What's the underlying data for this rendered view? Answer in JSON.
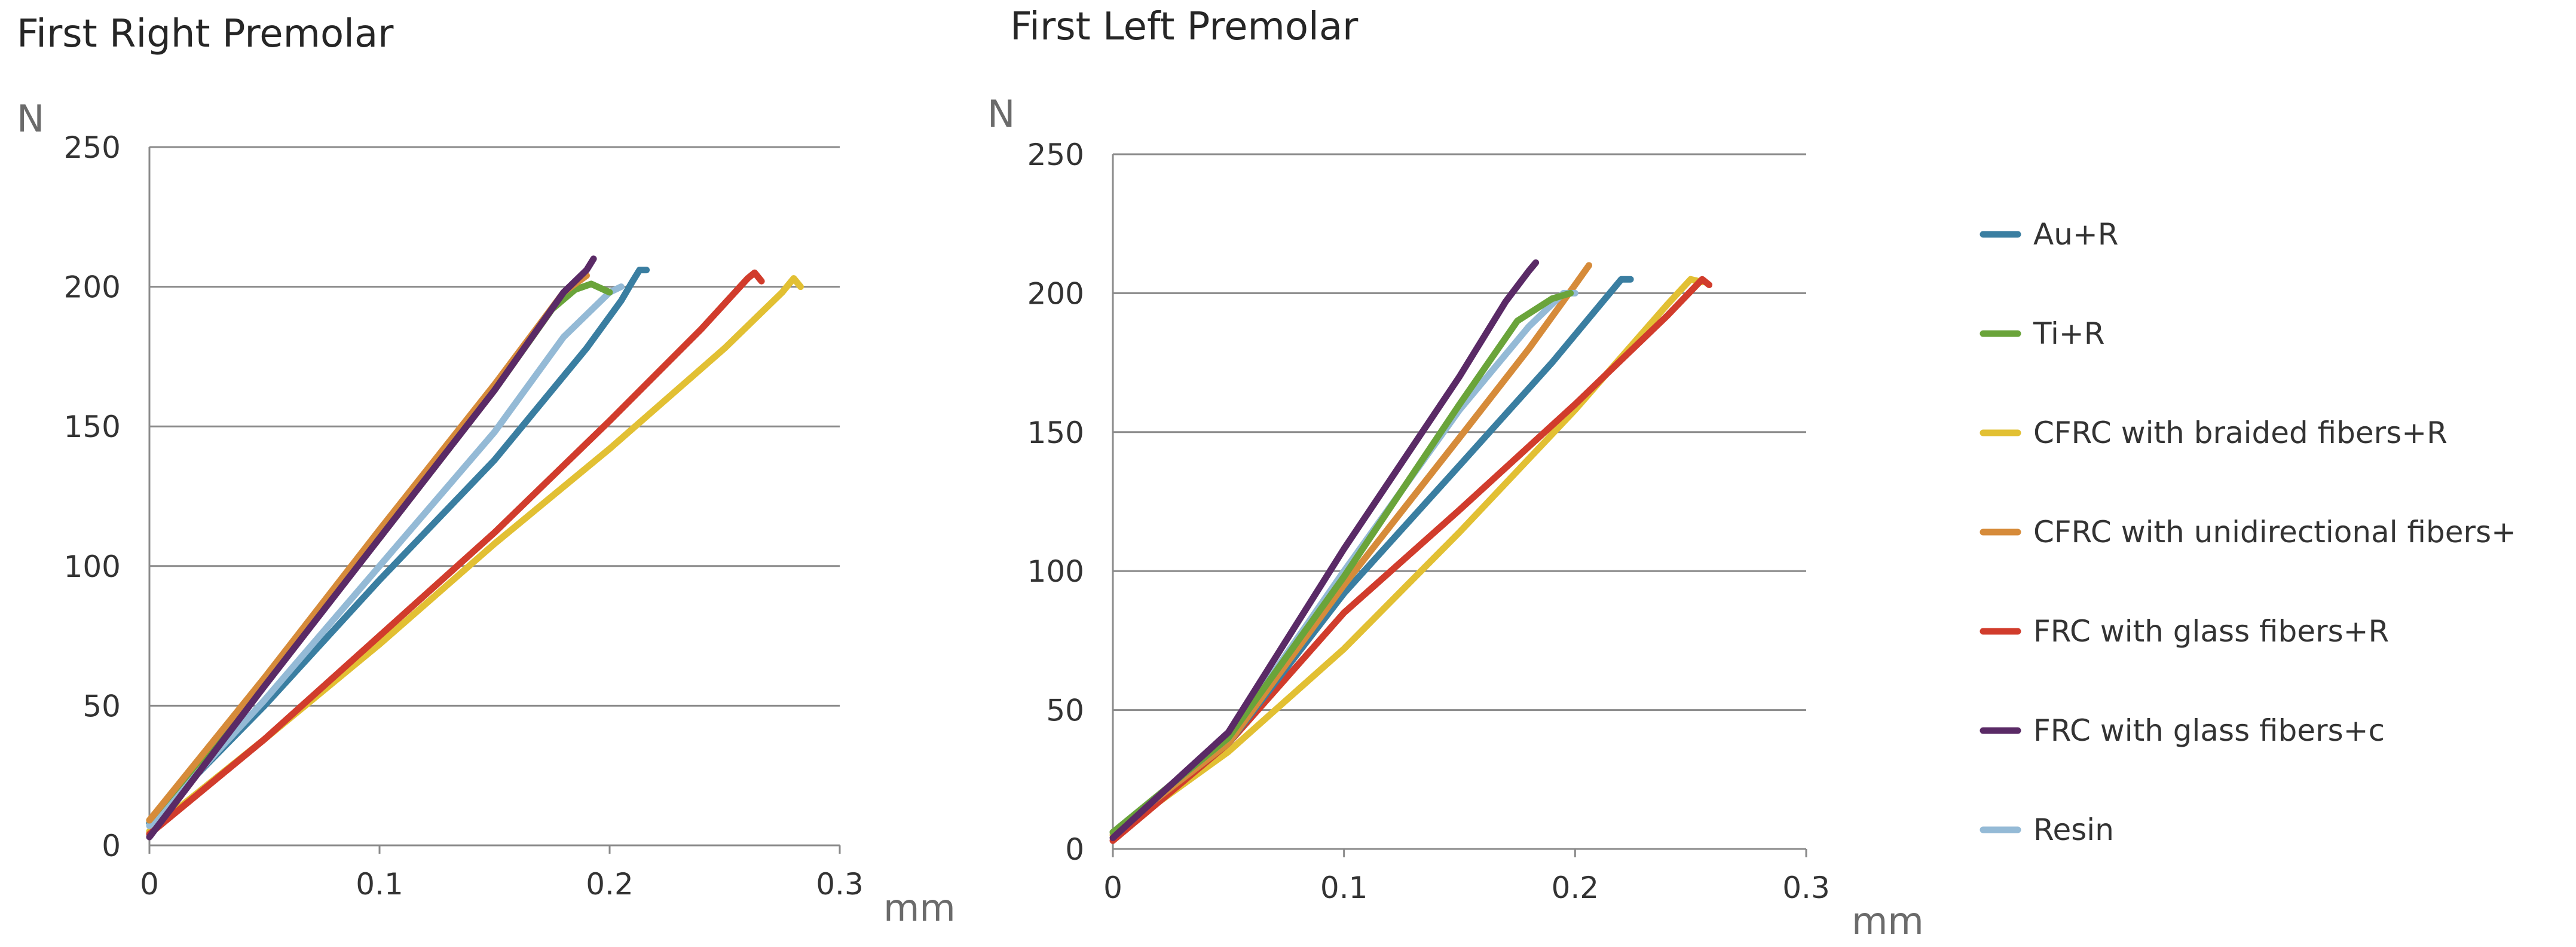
{
  "chart_data": [
    {
      "type": "line",
      "title": "First Right Premolar",
      "xlabel": "mm",
      "ylabel": "N",
      "xlim": [
        0,
        0.3
      ],
      "ylim": [
        0,
        250
      ],
      "xticks": [
        "0",
        "0.1",
        "0.2",
        "0.3"
      ],
      "yticks": [
        "0",
        "50",
        "100",
        "150",
        "200",
        "250"
      ],
      "grid": true,
      "series": [
        {
          "name": "CFRC with braided fibers+R",
          "color": "#E2C033",
          "points": [
            [
              0,
              5
            ],
            [
              0.05,
              38
            ],
            [
              0.1,
              72
            ],
            [
              0.15,
              108
            ],
            [
              0.2,
              142
            ],
            [
              0.25,
              178
            ],
            [
              0.275,
              198
            ],
            [
              0.28,
              203
            ],
            [
              0.283,
              200
            ]
          ]
        },
        {
          "name": "FRC with glass fibers+R",
          "color": "#D13C2C",
          "points": [
            [
              0,
              4
            ],
            [
              0.05,
              38
            ],
            [
              0.1,
              75
            ],
            [
              0.15,
              112
            ],
            [
              0.2,
              152
            ],
            [
              0.24,
              185
            ],
            [
              0.26,
              203
            ],
            [
              0.263,
              205
            ],
            [
              0.266,
              202
            ]
          ]
        },
        {
          "name": "Au+R",
          "color": "#3A7EA1",
          "points": [
            [
              0,
              8
            ],
            [
              0.05,
              50
            ],
            [
              0.1,
              95
            ],
            [
              0.15,
              138
            ],
            [
              0.19,
              178
            ],
            [
              0.205,
              195
            ],
            [
              0.21,
              202
            ],
            [
              0.213,
              206
            ],
            [
              0.216,
              206
            ]
          ]
        },
        {
          "name": "Resin",
          "color": "#94BAD6",
          "points": [
            [
              0,
              7
            ],
            [
              0.05,
              52
            ],
            [
              0.1,
              100
            ],
            [
              0.15,
              148
            ],
            [
              0.18,
              182
            ],
            [
              0.2,
              198
            ],
            [
              0.205,
              200
            ]
          ]
        },
        {
          "name": "Ti+R",
          "color": "#6AA43A",
          "points": [
            [
              0,
              9
            ],
            [
              0.05,
              58
            ],
            [
              0.1,
              110
            ],
            [
              0.15,
              163
            ],
            [
              0.175,
              192
            ],
            [
              0.185,
              199
            ],
            [
              0.192,
              201
            ],
            [
              0.2,
              198
            ]
          ]
        },
        {
          "name": "CFRC with unidirectional fibers+",
          "color": "#D68B3A",
          "points": [
            [
              0,
              9
            ],
            [
              0.05,
              60
            ],
            [
              0.1,
              113
            ],
            [
              0.15,
              165
            ],
            [
              0.18,
              198
            ],
            [
              0.19,
              204
            ]
          ]
        },
        {
          "name": "FRC with glass fibers+c",
          "color": "#5A2A66",
          "points": [
            [
              0,
              3
            ],
            [
              0.05,
              57
            ],
            [
              0.1,
              110
            ],
            [
              0.15,
              163
            ],
            [
              0.18,
              198
            ],
            [
              0.19,
              206
            ],
            [
              0.193,
              210
            ]
          ]
        }
      ]
    },
    {
      "type": "line",
      "title": "First Left Premolar",
      "xlabel": "mm",
      "ylabel": "N",
      "xlim": [
        0,
        0.3
      ],
      "ylim": [
        0,
        250
      ],
      "xticks": [
        "0",
        "0.1",
        "0.2",
        "0.3"
      ],
      "yticks": [
        "0",
        "50",
        "100",
        "150",
        "200",
        "250"
      ],
      "grid": true,
      "series": [
        {
          "name": "CFRC with braided fibers+R",
          "color": "#E2C033",
          "points": [
            [
              0,
              5
            ],
            [
              0.05,
              35
            ],
            [
              0.1,
              72
            ],
            [
              0.15,
              114
            ],
            [
              0.2,
              158
            ],
            [
              0.24,
              196
            ],
            [
              0.25,
              205
            ],
            [
              0.255,
              204
            ]
          ]
        },
        {
          "name": "FRC with glass fibers+R",
          "color": "#D13C2C",
          "points": [
            [
              0,
              3
            ],
            [
              0.05,
              38
            ],
            [
              0.1,
              85
            ],
            [
              0.15,
              122
            ],
            [
              0.2,
              160
            ],
            [
              0.24,
              192
            ],
            [
              0.255,
              205
            ],
            [
              0.258,
              203
            ]
          ]
        },
        {
          "name": "Au+R",
          "color": "#3A7EA1",
          "points": [
            [
              0,
              6
            ],
            [
              0.05,
              38
            ],
            [
              0.1,
              92
            ],
            [
              0.15,
              138
            ],
            [
              0.19,
              175
            ],
            [
              0.21,
              195
            ],
            [
              0.22,
              205
            ],
            [
              0.224,
              205
            ]
          ]
        },
        {
          "name": "CFRC with unidirectional fibers+",
          "color": "#D68B3A",
          "points": [
            [
              0,
              6
            ],
            [
              0.05,
              38
            ],
            [
              0.1,
              95
            ],
            [
              0.15,
              148
            ],
            [
              0.18,
              180
            ],
            [
              0.2,
              203
            ],
            [
              0.206,
              210
            ]
          ]
        },
        {
          "name": "Resin",
          "color": "#94BAD6",
          "points": [
            [
              0,
              6
            ],
            [
              0.05,
              40
            ],
            [
              0.1,
              100
            ],
            [
              0.15,
              158
            ],
            [
              0.18,
              188
            ],
            [
              0.195,
              200
            ],
            [
              0.2,
              200
            ]
          ]
        },
        {
          "name": "Ti+R",
          "color": "#6AA43A",
          "points": [
            [
              0,
              6
            ],
            [
              0.05,
              40
            ],
            [
              0.1,
              98
            ],
            [
              0.15,
              160
            ],
            [
              0.175,
              190
            ],
            [
              0.19,
              198
            ],
            [
              0.198,
              200
            ]
          ]
        },
        {
          "name": "FRC with glass fibers+c",
          "color": "#5A2A66",
          "points": [
            [
              0,
              4
            ],
            [
              0.05,
              42
            ],
            [
              0.1,
              108
            ],
            [
              0.15,
              170
            ],
            [
              0.17,
              197
            ],
            [
              0.18,
              208
            ],
            [
              0.183,
              211
            ]
          ]
        }
      ]
    }
  ],
  "legend": {
    "position": "right",
    "items": [
      {
        "label": "Au+R",
        "color": "#3A7EA1"
      },
      {
        "label": "Ti+R",
        "color": "#6AA43A"
      },
      {
        "label": "CFRC with braided fibers+R",
        "color": "#E2C033"
      },
      {
        "label": "CFRC with unidirectional fibers+",
        "color": "#D68B3A"
      },
      {
        "label": "FRC with glass fibers+R",
        "color": "#D13C2C"
      },
      {
        "label": "FRC with glass fibers+c",
        "color": "#5A2A66"
      },
      {
        "label": "Resin",
        "color": "#94BAD6"
      }
    ]
  }
}
